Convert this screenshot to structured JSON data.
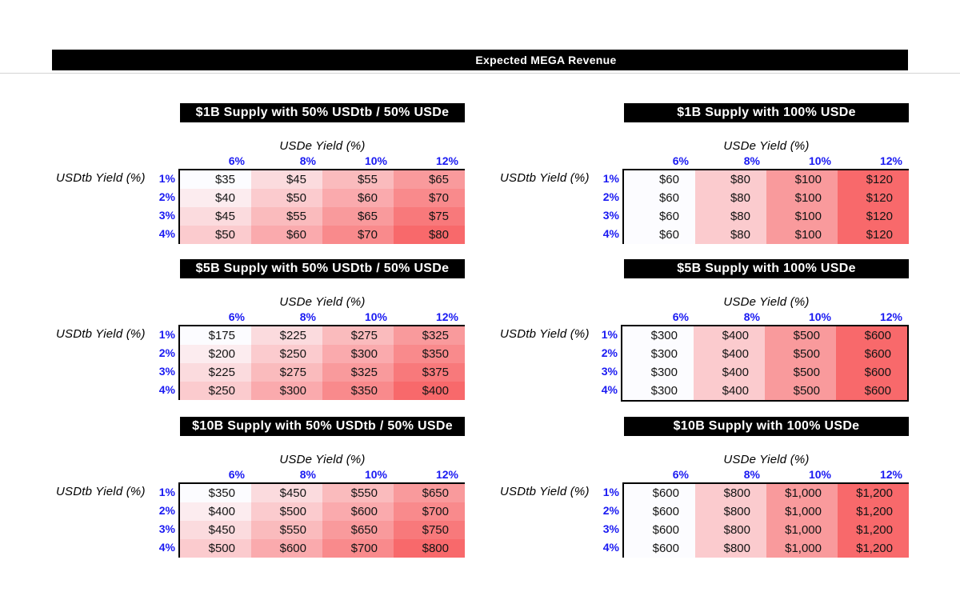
{
  "title": "Expected MEGA Revenue",
  "colors": {
    "title_bar_bg": "#000000",
    "title_bar_text": "#ffffff",
    "tick_header_blue": "#1a1af2",
    "table_border": "#000000",
    "value_text": "#141414",
    "heat_scale_low": "#FCFCFF",
    "heat_scale_high": "#F8696B"
  },
  "value_prefix": "$",
  "axes": {
    "col_axis_label": "USDe Yield (%)",
    "row_axis_label": "USDtb Yield (%)",
    "col_headers": [
      "6%",
      "8%",
      "10%",
      "12%"
    ],
    "row_headers": [
      "1%",
      "2%",
      "3%",
      "4%"
    ]
  },
  "chart_data": [
    {
      "type": "heatmap",
      "title": "$1B Supply with 50% USDtb / 50% USDe",
      "xlabel": "USDe Yield (%)",
      "ylabel": "USDtb Yield (%)",
      "x_tick_labels": [
        "6%",
        "8%",
        "10%",
        "12%"
      ],
      "y_tick_labels": [
        "1%",
        "2%",
        "3%",
        "4%"
      ],
      "values": [
        [
          35,
          45,
          55,
          65
        ],
        [
          40,
          50,
          60,
          70
        ],
        [
          45,
          55,
          65,
          75
        ],
        [
          50,
          60,
          70,
          80
        ]
      ],
      "color_scale": [
        "#FCFCFF",
        "#F8696B"
      ],
      "full_border": false
    },
    {
      "type": "heatmap",
      "title": "$1B Supply with 100% USDe",
      "xlabel": "USDe Yield (%)",
      "ylabel": "USDtb Yield (%)",
      "x_tick_labels": [
        "6%",
        "8%",
        "10%",
        "12%"
      ],
      "y_tick_labels": [
        "1%",
        "2%",
        "3%",
        "4%"
      ],
      "values": [
        [
          60,
          80,
          100,
          120
        ],
        [
          60,
          80,
          100,
          120
        ],
        [
          60,
          80,
          100,
          120
        ],
        [
          60,
          80,
          100,
          120
        ]
      ],
      "color_scale": [
        "#FCFCFF",
        "#F8696B"
      ],
      "full_border": false
    },
    {
      "type": "heatmap",
      "title": "$5B Supply with 50% USDtb / 50% USDe",
      "xlabel": "USDe Yield (%)",
      "ylabel": "USDtb Yield (%)",
      "x_tick_labels": [
        "6%",
        "8%",
        "10%",
        "12%"
      ],
      "y_tick_labels": [
        "1%",
        "2%",
        "3%",
        "4%"
      ],
      "values": [
        [
          175,
          225,
          275,
          325
        ],
        [
          200,
          250,
          300,
          350
        ],
        [
          225,
          275,
          325,
          375
        ],
        [
          250,
          300,
          350,
          400
        ]
      ],
      "color_scale": [
        "#FCFCFF",
        "#F8696B"
      ],
      "full_border": false
    },
    {
      "type": "heatmap",
      "title": "$5B Supply with 100% USDe",
      "xlabel": "USDe Yield (%)",
      "ylabel": "USDtb Yield (%)",
      "x_tick_labels": [
        "6%",
        "8%",
        "10%",
        "12%"
      ],
      "y_tick_labels": [
        "1%",
        "2%",
        "3%",
        "4%"
      ],
      "values": [
        [
          300,
          400,
          500,
          600
        ],
        [
          300,
          400,
          500,
          600
        ],
        [
          300,
          400,
          500,
          600
        ],
        [
          300,
          400,
          500,
          600
        ]
      ],
      "color_scale": [
        "#FCFCFF",
        "#F8696B"
      ],
      "full_border": true
    },
    {
      "type": "heatmap",
      "title": "$10B Supply with 50% USDtb / 50% USDe",
      "xlabel": "USDe Yield (%)",
      "ylabel": "USDtb Yield (%)",
      "x_tick_labels": [
        "6%",
        "8%",
        "10%",
        "12%"
      ],
      "y_tick_labels": [
        "1%",
        "2%",
        "3%",
        "4%"
      ],
      "values": [
        [
          350,
          450,
          550,
          650
        ],
        [
          400,
          500,
          600,
          700
        ],
        [
          450,
          550,
          650,
          750
        ],
        [
          500,
          600,
          700,
          800
        ]
      ],
      "color_scale": [
        "#FCFCFF",
        "#F8696B"
      ],
      "full_border": false
    },
    {
      "type": "heatmap",
      "title": "$10B Supply with 100% USDe",
      "xlabel": "USDe Yield (%)",
      "ylabel": "USDtb Yield (%)",
      "x_tick_labels": [
        "6%",
        "8%",
        "10%",
        "12%"
      ],
      "y_tick_labels": [
        "1%",
        "2%",
        "3%",
        "4%"
      ],
      "values": [
        [
          600,
          800,
          1000,
          1200
        ],
        [
          600,
          800,
          1000,
          1200
        ],
        [
          600,
          800,
          1000,
          1200
        ],
        [
          600,
          800,
          1000,
          1200
        ]
      ],
      "color_scale": [
        "#FCFCFF",
        "#F8696B"
      ],
      "full_border": false
    }
  ]
}
